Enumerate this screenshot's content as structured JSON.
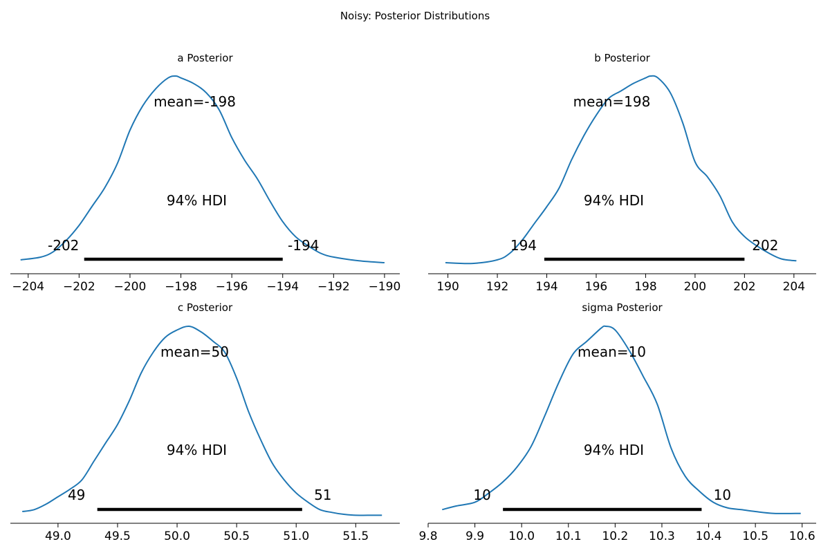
{
  "figure": {
    "title": "Noisy: Posterior Distributions"
  },
  "colors": {
    "kde": "#1f77b4",
    "hdi": "#000000"
  },
  "chart_data": [
    {
      "type": "area",
      "title": "a Posterior",
      "xlim": [
        -204.7,
        -189.4
      ],
      "xticks": [
        -204,
        -202,
        -200,
        -198,
        -196,
        -194,
        -192,
        -190
      ],
      "xtick_labels": [
        "−204",
        "−202",
        "−200",
        "−198",
        "−196",
        "−194",
        "−192",
        "−190"
      ],
      "mean_label": "mean=-198",
      "hdi_label": "94% HDI",
      "hdi": [
        -201.8,
        -194.0
      ],
      "hdi_low_label": "-202",
      "hdi_high_label": "-194",
      "x": [
        -204.3,
        -203.5,
        -203.0,
        -202.5,
        -202.0,
        -201.5,
        -201.0,
        -200.5,
        -200.0,
        -199.5,
        -199.0,
        -198.5,
        -198.2,
        -198.0,
        -197.5,
        -197.0,
        -196.5,
        -196.0,
        -195.5,
        -195.0,
        -194.5,
        -194.0,
        -193.5,
        -193.0,
        -192.5,
        -192.0,
        -191.0,
        -190.0
      ],
      "density": [
        0.015,
        0.03,
        0.06,
        0.12,
        0.2,
        0.3,
        0.4,
        0.53,
        0.71,
        0.84,
        0.93,
        0.99,
        1.0,
        0.99,
        0.96,
        0.91,
        0.82,
        0.67,
        0.55,
        0.45,
        0.33,
        0.22,
        0.14,
        0.09,
        0.05,
        0.03,
        0.01,
        0.0
      ]
    },
    {
      "type": "area",
      "title": "b Posterior",
      "xlim": [
        189.2,
        204.9
      ],
      "xticks": [
        190,
        192,
        194,
        196,
        198,
        200,
        202,
        204
      ],
      "xtick_labels": [
        "190",
        "192",
        "194",
        "196",
        "198",
        "200",
        "202",
        "204"
      ],
      "mean_label": "mean=198",
      "hdi_label": "94% HDI",
      "hdi": [
        193.9,
        202.0
      ],
      "hdi_low_label": "194",
      "hdi_high_label": "202",
      "x": [
        189.9,
        191.0,
        192.0,
        192.5,
        193.0,
        193.5,
        194.0,
        194.5,
        195.0,
        195.5,
        196.0,
        196.5,
        197.0,
        197.5,
        198.0,
        198.2,
        198.5,
        199.0,
        199.5,
        200.0,
        200.5,
        201.0,
        201.5,
        202.0,
        202.5,
        203.0,
        203.5,
        204.1
      ],
      "density": [
        0.0,
        -0.004,
        0.015,
        0.05,
        0.12,
        0.21,
        0.3,
        0.4,
        0.55,
        0.68,
        0.79,
        0.88,
        0.92,
        0.96,
        0.99,
        1.0,
        0.99,
        0.91,
        0.75,
        0.54,
        0.46,
        0.36,
        0.22,
        0.14,
        0.09,
        0.05,
        0.02,
        0.01
      ]
    },
    {
      "type": "area",
      "title": "c Posterior",
      "xlim": [
        48.6,
        51.87
      ],
      "xticks": [
        49.0,
        49.5,
        50.0,
        50.5,
        51.0,
        51.5
      ],
      "xtick_labels": [
        "49.0",
        "49.5",
        "50.0",
        "50.5",
        "51.0",
        "51.5"
      ],
      "mean_label": "mean=50",
      "hdi_label": "94% HDI",
      "hdi": [
        49.33,
        51.05
      ],
      "hdi_low_label": "49",
      "hdi_high_label": "51",
      "x": [
        48.7,
        48.8,
        48.9,
        49.0,
        49.1,
        49.2,
        49.3,
        49.4,
        49.5,
        49.6,
        49.7,
        49.8,
        49.9,
        50.0,
        50.1,
        50.2,
        50.3,
        50.4,
        50.5,
        50.6,
        50.7,
        50.8,
        50.9,
        51.0,
        51.1,
        51.2,
        51.3,
        51.4,
        51.5,
        51.6,
        51.72
      ],
      "density": [
        0.0,
        0.01,
        0.04,
        0.08,
        0.12,
        0.17,
        0.27,
        0.37,
        0.47,
        0.6,
        0.75,
        0.86,
        0.94,
        0.98,
        1.0,
        0.97,
        0.92,
        0.86,
        0.72,
        0.54,
        0.39,
        0.26,
        0.17,
        0.1,
        0.05,
        0.01,
        -0.005,
        -0.015,
        -0.02,
        -0.02,
        -0.02
      ]
    },
    {
      "type": "area",
      "title": "sigma Posterior",
      "xlim": [
        9.8,
        10.63
      ],
      "xticks": [
        9.8,
        9.9,
        10.0,
        10.1,
        10.2,
        10.3,
        10.4,
        10.5,
        10.6
      ],
      "xtick_labels": [
        "9.8",
        "9.9",
        "10.0",
        "10.1",
        "10.2",
        "10.3",
        "10.4",
        "10.5",
        "10.6"
      ],
      "mean_label": "mean=10",
      "hdi_label": "94% HDI",
      "hdi": [
        9.96,
        10.385
      ],
      "hdi_low_label": "10",
      "hdi_high_label": "10",
      "x": [
        9.83,
        9.86,
        9.9,
        9.93,
        9.96,
        9.99,
        10.02,
        10.05,
        10.08,
        10.11,
        10.14,
        10.17,
        10.18,
        10.2,
        10.23,
        10.26,
        10.29,
        10.32,
        10.35,
        10.38,
        10.41,
        10.44,
        10.47,
        10.5,
        10.54,
        10.597
      ],
      "density": [
        0.01,
        0.03,
        0.05,
        0.1,
        0.16,
        0.24,
        0.35,
        0.52,
        0.7,
        0.85,
        0.92,
        0.99,
        1.0,
        0.98,
        0.87,
        0.73,
        0.58,
        0.34,
        0.19,
        0.11,
        0.05,
        0.02,
        0.01,
        0.0,
        -0.01,
        -0.01
      ]
    }
  ]
}
